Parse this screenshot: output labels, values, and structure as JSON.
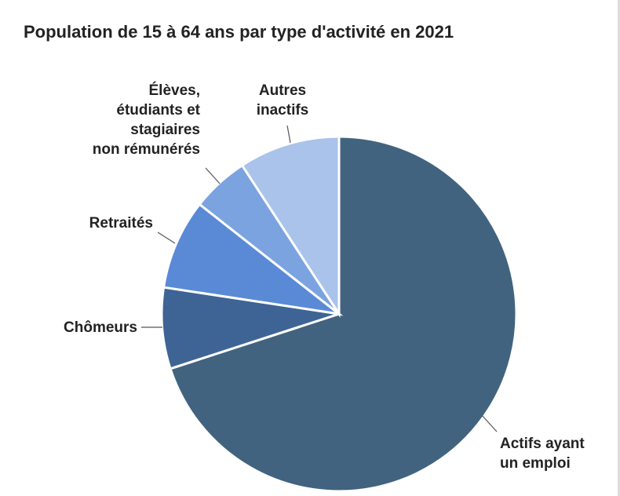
{
  "chart_data": {
    "type": "pie",
    "title": "Population de 15 à 64 ans par type d'activité en 2021",
    "categories": [
      "Actifs ayant\nun emploi",
      "Chômeurs",
      "Retraités",
      "Élèves,\nétudiants et\nstagiaires\nnon rémunérés",
      "Autres\ninactifs"
    ],
    "values": [
      70.0,
      7.4,
      8.2,
      5.2,
      9.2
    ],
    "colors": [
      "#41637f",
      "#3e6496",
      "#5a8ad6",
      "#7aa3e0",
      "#a9c3ea"
    ]
  }
}
